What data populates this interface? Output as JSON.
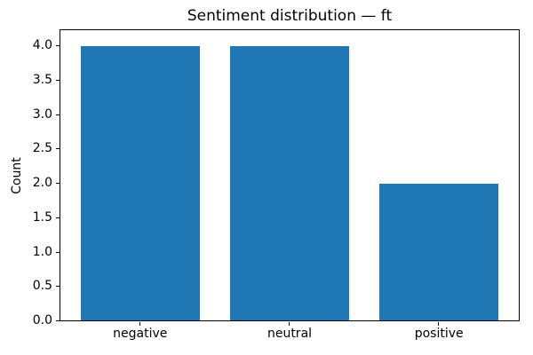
{
  "chart_data": {
    "type": "bar",
    "title": "Sentiment distribution — ft",
    "categories": [
      "negative",
      "neutral",
      "positive"
    ],
    "values": [
      4,
      4,
      2
    ],
    "xlabel": "",
    "ylabel": "Count",
    "ylim": [
      0,
      4.25
    ],
    "xlim": [
      -0.54,
      2.54
    ],
    "yticks": [
      0.0,
      0.5,
      1.0,
      1.5,
      2.0,
      2.5,
      3.0,
      3.5,
      4.0
    ],
    "ytick_labels": [
      "0.0",
      "0.5",
      "1.0",
      "1.5",
      "2.0",
      "2.5",
      "3.0",
      "3.5",
      "4.0"
    ],
    "bar_color": "#1f77b4",
    "bar_width": 0.8,
    "grid": false,
    "legend_position": "none",
    "background_color": "#ffffff",
    "text_color": "#000000"
  }
}
